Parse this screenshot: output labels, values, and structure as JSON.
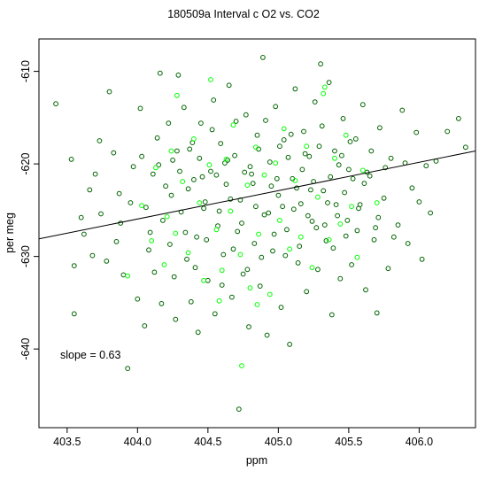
{
  "chart_data": {
    "type": "scatter",
    "title": "180509a   Interval c O2 vs. CO2",
    "xlabel": "ppm",
    "ylabel": "per meg",
    "xlim": [
      403.3,
      406.4
    ],
    "ylim": [
      -648.5,
      -606.5
    ],
    "x_ticks": [
      403.5,
      404.0,
      404.5,
      405.0,
      405.5,
      406.0
    ],
    "x_tick_labels": [
      "403.5",
      "404.0",
      "404.5",
      "405.0",
      "405.5",
      "406.0"
    ],
    "y_ticks": [
      -610,
      -620,
      -630,
      -640
    ],
    "y_tick_labels": [
      "-610",
      "-620",
      "-630",
      "-640"
    ],
    "annotation": "slope =  0.63",
    "slope": 0.63,
    "fit_line": {
      "x": [
        403.3,
        406.4
      ],
      "y": [
        -628.1,
        -618.6
      ]
    },
    "grid": false,
    "legend": "none",
    "colors": {
      "dark": "#006400",
      "bright": "#00ff00",
      "fit": "#000000"
    },
    "series": [
      {
        "color": "dark",
        "points": [
          [
            403.42,
            -613.5
          ],
          [
            403.53,
            -619.5
          ],
          [
            403.55,
            -631
          ],
          [
            403.55,
            -636.2
          ],
          [
            403.6,
            -625.8
          ],
          [
            403.62,
            -627.6
          ],
          [
            403.66,
            -622.8
          ],
          [
            403.68,
            -629.9
          ],
          [
            403.73,
            -617.5
          ],
          [
            403.74,
            -625.4
          ],
          [
            403.78,
            -630.5
          ],
          [
            403.8,
            -612.2
          ],
          [
            403.83,
            -618.8
          ],
          [
            403.87,
            -623.2
          ],
          [
            403.88,
            -626.4
          ],
          [
            403.9,
            -632
          ],
          [
            403.93,
            -642.1
          ],
          [
            403.97,
            -620.3
          ],
          [
            404.0,
            -634.6
          ],
          [
            404.02,
            -614
          ],
          [
            404.05,
            -637.5
          ],
          [
            404.06,
            -624.7
          ],
          [
            404.09,
            -627.4
          ],
          [
            404.12,
            -631.7
          ],
          [
            404.14,
            -617.2
          ],
          [
            404.16,
            -610.2
          ],
          [
            404.17,
            -635.1
          ],
          [
            404.2,
            -622.4
          ],
          [
            404.23,
            -628.7
          ],
          [
            404.25,
            -619.6
          ],
          [
            404.27,
            -636.8
          ],
          [
            404.29,
            -610.4
          ],
          [
            404.31,
            -625.2
          ],
          [
            404.33,
            -613.9
          ],
          [
            404.35,
            -630.3
          ],
          [
            404.37,
            -618.4
          ],
          [
            404.38,
            -634.9
          ],
          [
            404.4,
            -621.7
          ],
          [
            404.42,
            -627.9
          ],
          [
            404.43,
            -638.2
          ],
          [
            404.45,
            -615.6
          ],
          [
            404.47,
            -624.8
          ],
          [
            404.5,
            -632.6
          ],
          [
            404.52,
            -620.8
          ],
          [
            404.54,
            -613.1
          ],
          [
            404.55,
            -636.2
          ],
          [
            404.57,
            -626.7
          ],
          [
            404.59,
            -617.8
          ],
          [
            404.61,
            -629.8
          ],
          [
            404.63,
            -622.2
          ],
          [
            404.65,
            -611.5
          ],
          [
            404.67,
            -634.4
          ],
          [
            404.69,
            -619.1
          ],
          [
            404.71,
            -627.3
          ],
          [
            404.72,
            -646.5
          ],
          [
            404.73,
            -623.9
          ],
          [
            404.75,
            -631.9
          ],
          [
            404.77,
            -614.7
          ],
          [
            404.79,
            -637.6
          ],
          [
            404.81,
            -621.1
          ],
          [
            404.83,
            -628.6
          ],
          [
            404.85,
            -616.9
          ],
          [
            404.87,
            -633.2
          ],
          [
            404.89,
            -608.5
          ],
          [
            404.9,
            -625.5
          ],
          [
            404.92,
            -638.5
          ],
          [
            404.94,
            -619.8
          ],
          [
            404.96,
            -629.4
          ],
          [
            404.98,
            -613.8
          ],
          [
            405.0,
            -623.4
          ],
          [
            405.02,
            -635.5
          ],
          [
            405.04,
            -617.4
          ],
          [
            405.06,
            -627.1
          ],
          [
            405.08,
            -639.5
          ],
          [
            405.1,
            -621.6
          ],
          [
            405.12,
            -611.9
          ],
          [
            405.14,
            -630.7
          ],
          [
            405.16,
            -624.3
          ],
          [
            405.18,
            -616.5
          ],
          [
            405.2,
            -633.8
          ],
          [
            405.22,
            -619.2
          ],
          [
            405.24,
            -626.2
          ],
          [
            405.26,
            -613.3
          ],
          [
            405.28,
            -631.4
          ],
          [
            405.3,
            -609.2
          ],
          [
            405.32,
            -622.9
          ],
          [
            405.34,
            -628.3
          ],
          [
            405.36,
            -611.2
          ],
          [
            405.38,
            -636.3
          ],
          [
            405.4,
            -618.6
          ],
          [
            405.42,
            -625.6
          ],
          [
            405.44,
            -632.4
          ],
          [
            405.46,
            -615.1
          ],
          [
            405.48,
            -627.8
          ],
          [
            405.5,
            -620.6
          ],
          [
            405.52,
            -630.9
          ],
          [
            405.55,
            -617.3
          ],
          [
            405.58,
            -624.4
          ],
          [
            405.6,
            -613.6
          ],
          [
            405.62,
            -633.6
          ],
          [
            405.65,
            -621.3
          ],
          [
            405.68,
            -628.2
          ],
          [
            405.7,
            -636.1
          ],
          [
            405.72,
            -616.1
          ],
          [
            405.75,
            -623.7
          ],
          [
            405.78,
            -631.3
          ],
          [
            405.8,
            -619.4
          ],
          [
            405.85,
            -626.6
          ],
          [
            405.88,
            -614.2
          ],
          [
            405.92,
            -628.6
          ],
          [
            405.95,
            -622.6
          ],
          [
            405.98,
            -616.6
          ],
          [
            406.02,
            -630.3
          ],
          [
            406.05,
            -620.2
          ],
          [
            406.08,
            -625.3
          ],
          [
            406.2,
            -616.5
          ],
          [
            406.28,
            -615.1
          ],
          [
            406.33,
            -618.2
          ],
          [
            403.7,
            -621.1
          ],
          [
            403.85,
            -628.4
          ],
          [
            403.95,
            -624.2
          ],
          [
            404.03,
            -619.2
          ],
          [
            404.08,
            -629.3
          ],
          [
            404.11,
            -621.1
          ],
          [
            404.18,
            -626.1
          ],
          [
            404.22,
            -615.6
          ],
          [
            404.26,
            -632.2
          ],
          [
            404.3,
            -620.8
          ],
          [
            404.34,
            -627.4
          ],
          [
            404.39,
            -617.7
          ],
          [
            404.41,
            -631.2
          ],
          [
            404.46,
            -621.4
          ],
          [
            404.49,
            -628.2
          ],
          [
            404.53,
            -616.3
          ],
          [
            404.58,
            -625.1
          ],
          [
            404.6,
            -633.1
          ],
          [
            404.64,
            -619.6
          ],
          [
            404.68,
            -629.2
          ],
          [
            404.7,
            -615.4
          ],
          [
            404.74,
            -626.4
          ],
          [
            404.78,
            -631.4
          ],
          [
            404.8,
            -620.3
          ],
          [
            404.84,
            -624.6
          ],
          [
            404.88,
            -630.1
          ],
          [
            404.91,
            -615.3
          ],
          [
            404.95,
            -622.4
          ],
          [
            404.97,
            -627.6
          ],
          [
            405.01,
            -618.1
          ],
          [
            405.05,
            -629.9
          ],
          [
            405.09,
            -616.8
          ],
          [
            405.11,
            -624.9
          ],
          [
            405.15,
            -628.9
          ],
          [
            405.19,
            -618.9
          ],
          [
            405.23,
            -622.8
          ],
          [
            405.27,
            -626.9
          ],
          [
            405.31,
            -615.9
          ],
          [
            405.35,
            -624.2
          ],
          [
            405.39,
            -629.1
          ],
          [
            405.43,
            -620.1
          ],
          [
            405.47,
            -623.1
          ],
          [
            405.51,
            -617.6
          ],
          [
            405.56,
            -627.2
          ],
          [
            405.61,
            -622.1
          ],
          [
            405.66,
            -618.6
          ],
          [
            405.71,
            -625.8
          ],
          [
            405.76,
            -620.4
          ],
          [
            405.82,
            -627.9
          ],
          [
            405.9,
            -619.9
          ],
          [
            406.0,
            -624.1
          ],
          [
            406.12,
            -619.7
          ],
          [
            404.15,
            -620.1
          ],
          [
            404.24,
            -623.4
          ],
          [
            404.28,
            -618.6
          ],
          [
            404.36,
            -622.7
          ],
          [
            404.44,
            -619.4
          ],
          [
            404.48,
            -624.1
          ],
          [
            404.56,
            -621.2
          ],
          [
            404.62,
            -619.9
          ],
          [
            404.66,
            -623.8
          ],
          [
            404.76,
            -620.9
          ],
          [
            404.82,
            -622.1
          ],
          [
            404.86,
            -618.4
          ],
          [
            404.93,
            -625.3
          ],
          [
            404.99,
            -621.6
          ],
          [
            405.03,
            -624.6
          ],
          [
            405.07,
            -619.3
          ],
          [
            405.13,
            -622.6
          ],
          [
            405.17,
            -620.6
          ],
          [
            405.21,
            -625.6
          ],
          [
            405.25,
            -621.9
          ],
          [
            405.29,
            -618.1
          ],
          [
            405.33,
            -626.6
          ],
          [
            405.37,
            -621.4
          ],
          [
            405.41,
            -624.4
          ],
          [
            405.45,
            -619.1
          ],
          [
            405.49,
            -626.1
          ],
          [
            405.53,
            -621.6
          ],
          [
            405.57,
            -624.8
          ],
          [
            405.63,
            -620.9
          ],
          [
            405.69,
            -626.9
          ]
        ]
      },
      {
        "color": "bright",
        "points": [
          [
            403.93,
            -632.1
          ],
          [
            404.03,
            -624.5
          ],
          [
            404.1,
            -628.3
          ],
          [
            404.13,
            -620.4
          ],
          [
            404.19,
            -630.9
          ],
          [
            404.21,
            -625.7
          ],
          [
            404.24,
            -618.6
          ],
          [
            404.27,
            -627.5
          ],
          [
            404.32,
            -621.9
          ],
          [
            404.36,
            -629.6
          ],
          [
            404.4,
            -617.3
          ],
          [
            404.44,
            -624.2
          ],
          [
            404.47,
            -632.6
          ],
          [
            404.51,
            -620.1
          ],
          [
            404.56,
            -627.1
          ],
          [
            404.6,
            -631.5
          ],
          [
            404.63,
            -619.5
          ],
          [
            404.66,
            -625.1
          ],
          [
            404.68,
            -615.8
          ],
          [
            404.73,
            -629.8
          ],
          [
            404.74,
            -641.8
          ],
          [
            404.78,
            -622.3
          ],
          [
            404.8,
            -633.4
          ],
          [
            404.84,
            -618.2
          ],
          [
            404.86,
            -627.6
          ],
          [
            404.9,
            -621.2
          ],
          [
            404.94,
            -634.1
          ],
          [
            404.98,
            -619.9
          ],
          [
            405.01,
            -626.1
          ],
          [
            405.04,
            -616.2
          ],
          [
            405.08,
            -629.2
          ],
          [
            405.12,
            -621.8
          ],
          [
            405.16,
            -627.9
          ],
          [
            405.2,
            -618.1
          ],
          [
            405.24,
            -631.2
          ],
          [
            405.28,
            -623.6
          ],
          [
            405.32,
            -612.4
          ],
          [
            405.36,
            -628.2
          ],
          [
            405.4,
            -619.4
          ],
          [
            405.44,
            -626.5
          ],
          [
            405.48,
            -616.9
          ],
          [
            405.52,
            -624.6
          ],
          [
            405.56,
            -630.1
          ],
          [
            405.6,
            -620.7
          ],
          [
            405.7,
            -624.2
          ],
          [
            404.28,
            -612.6
          ],
          [
            404.52,
            -610.9
          ],
          [
            405.33,
            -611.7
          ],
          [
            404.58,
            -634.8
          ],
          [
            404.85,
            -635.2
          ]
        ]
      }
    ]
  }
}
